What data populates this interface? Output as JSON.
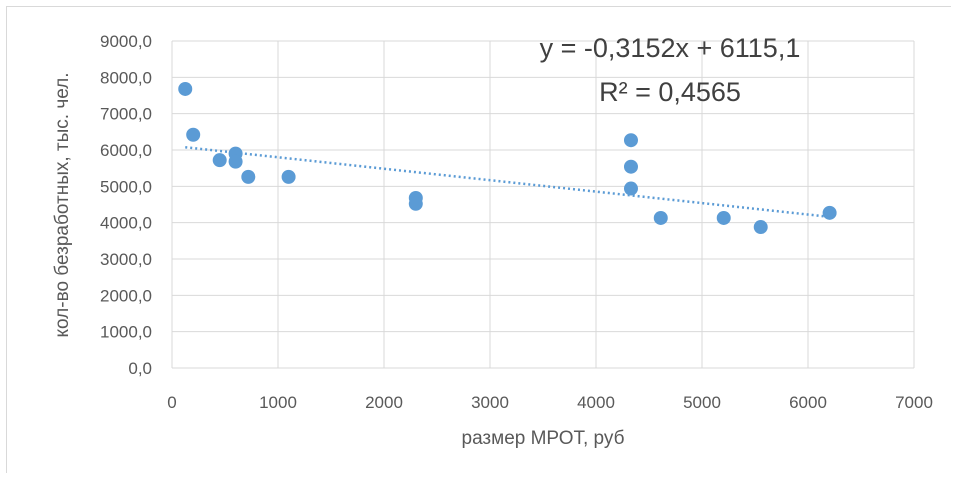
{
  "chart_data": {
    "type": "scatter",
    "title": "",
    "xlabel": "размер МРОТ, руб",
    "ylabel": "кол-во безработных, тыс. чел.",
    "xlim": [
      0,
      7000
    ],
    "ylim": [
      0,
      9000
    ],
    "x_ticks": [
      "0",
      "1000",
      "2000",
      "3000",
      "4000",
      "5000",
      "6000",
      "7000"
    ],
    "y_ticks": [
      "0,0",
      "1000,0",
      "2000,0",
      "3000,0",
      "4000,0",
      "5000,0",
      "6000,0",
      "7000,0",
      "8000,0",
      "9000,0"
    ],
    "grid": true,
    "legend": "none",
    "marker_color": "#5b9bd5",
    "trendline": {
      "type": "linear",
      "slope": -0.3152,
      "intercept": 6115.1,
      "style": "dotted",
      "color": "#5b9bd5",
      "equation_label": "y = -0,3152x + 6115,1",
      "r2_label": "R² = 0,4565"
    },
    "points": [
      {
        "x": 125,
        "y": 7680
      },
      {
        "x": 200,
        "y": 6420
      },
      {
        "x": 450,
        "y": 5720
      },
      {
        "x": 600,
        "y": 5900
      },
      {
        "x": 600,
        "y": 5680
      },
      {
        "x": 720,
        "y": 5260
      },
      {
        "x": 1100,
        "y": 5260
      },
      {
        "x": 2300,
        "y": 4680
      },
      {
        "x": 2300,
        "y": 4520
      },
      {
        "x": 4330,
        "y": 6270
      },
      {
        "x": 4330,
        "y": 5540
      },
      {
        "x": 4330,
        "y": 4940
      },
      {
        "x": 4611,
        "y": 4130
      },
      {
        "x": 5205,
        "y": 4130
      },
      {
        "x": 5554,
        "y": 3880
      },
      {
        "x": 6204,
        "y": 4270
      }
    ]
  }
}
